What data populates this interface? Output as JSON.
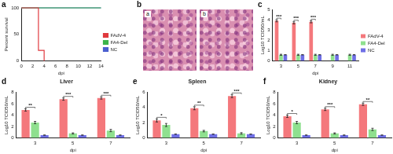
{
  "chart_data": [
    {
      "label": "a",
      "type": "line",
      "x": [
        0,
        3,
        4,
        14
      ],
      "xlabel": "dpi",
      "ylabel": "Percent survival",
      "xlim": [
        0,
        14
      ],
      "xticks": [
        0,
        2,
        4,
        6,
        8,
        10,
        12,
        14
      ],
      "ylim": [
        0,
        100
      ],
      "yticks": [
        0,
        50,
        100
      ],
      "grid": false,
      "legend": "right",
      "line_style": "step",
      "series": [
        {
          "name": "FAdV-4",
          "color": "#e0393e",
          "values": [
            100,
            20,
            0,
            null
          ]
        },
        {
          "name": "FA4-Del",
          "color": "#3cb44b",
          "values": [
            100,
            100,
            100,
            100
          ]
        },
        {
          "name": "NC",
          "color": "#4a5fd0",
          "values": [
            100,
            100,
            100,
            100
          ]
        }
      ]
    },
    {
      "label": "c",
      "type": "bar",
      "categories": [
        "3",
        "5",
        "7",
        "9",
        "11"
      ],
      "xlabel": "dpi",
      "ylabel": "Log10 TCID50/mL",
      "ylim": [
        0,
        5
      ],
      "yticks": [
        0,
        1,
        2,
        3,
        4,
        5
      ],
      "grid": false,
      "legend": "right",
      "annotations": [
        "***",
        "***",
        "***",
        null,
        null
      ],
      "series": [
        {
          "name": "FAdV-4",
          "color": "#f4787c",
          "values": [
            3.9,
            3.7,
            3.8,
            null,
            null
          ],
          "errors": [
            0.1,
            0.1,
            0.1,
            null,
            null
          ]
        },
        {
          "name": "FA4-Del",
          "color": "#8fe08f",
          "values": [
            0.6,
            0.6,
            0.6,
            0.6,
            0.6
          ],
          "errors": [
            0.05,
            0.05,
            0.05,
            0.05,
            0.05
          ]
        },
        {
          "name": "NC",
          "color": "#6f6fe6",
          "values": [
            0.6,
            0.6,
            0.6,
            0.6,
            0.6
          ],
          "errors": [
            0,
            0,
            0,
            0,
            0
          ]
        }
      ]
    },
    {
      "label": "d",
      "type": "bar",
      "title": "Liver",
      "categories": [
        "3",
        "5",
        "7"
      ],
      "xlabel": "dpi",
      "ylabel": "Log10 TCID50/mL",
      "ylim": [
        0,
        8
      ],
      "yticks": [
        0,
        2,
        4,
        6,
        8
      ],
      "grid": false,
      "annotations": [
        "**",
        "***",
        "***"
      ],
      "series": [
        {
          "name": "FAdV-4",
          "color": "#f4787c",
          "values": [
            4.9,
            6.8,
            7.0
          ],
          "errors": [
            0.2,
            0.2,
            0.2
          ]
        },
        {
          "name": "FA4-Del",
          "color": "#8fe08f",
          "values": [
            2.7,
            0.8,
            1.3
          ],
          "errors": [
            0.2,
            0.1,
            0.2
          ]
        },
        {
          "name": "NC",
          "color": "#6f6fe6",
          "values": [
            0.5,
            0.5,
            0.5
          ],
          "errors": [
            0,
            0,
            0
          ]
        }
      ]
    },
    {
      "label": "e",
      "type": "bar",
      "title": "Spleen",
      "categories": [
        "3",
        "5",
        "7"
      ],
      "xlabel": "dpi",
      "ylabel": "Log10 TCID50/mL",
      "ylim": [
        0,
        6
      ],
      "yticks": [
        0,
        2,
        4,
        6
      ],
      "grid": false,
      "annotations": [
        "*",
        "**",
        "***"
      ],
      "series": [
        {
          "name": "FAdV-4",
          "color": "#f4787c",
          "values": [
            2.3,
            3.9,
            5.5
          ],
          "errors": [
            0.2,
            0.2,
            0.2
          ]
        },
        {
          "name": "FA4-Del",
          "color": "#8fe08f",
          "values": [
            1.7,
            0.9,
            0.6
          ],
          "errors": [
            0.2,
            0.1,
            0.1
          ]
        },
        {
          "name": "NC",
          "color": "#6f6fe6",
          "values": [
            0.5,
            0.5,
            0.5
          ],
          "errors": [
            0,
            0,
            0
          ]
        }
      ]
    },
    {
      "label": "f",
      "type": "bar",
      "title": "Kidney",
      "categories": [
        "3",
        "5",
        "7"
      ],
      "xlabel": "dpi",
      "ylabel": "Log10 TCID50/mL",
      "ylim": [
        0,
        8
      ],
      "yticks": [
        0,
        2,
        4,
        6,
        8
      ],
      "grid": false,
      "annotations": [
        "*",
        "***",
        "**"
      ],
      "series": [
        {
          "name": "FAdV-4",
          "color": "#f4787c",
          "values": [
            3.8,
            5.0,
            5.9
          ],
          "errors": [
            0.2,
            0.2,
            0.2
          ]
        },
        {
          "name": "FA4-Del",
          "color": "#8fe08f",
          "values": [
            2.7,
            0.8,
            1.5
          ],
          "errors": [
            0.2,
            0.1,
            0.2
          ]
        },
        {
          "name": "NC",
          "color": "#6f6fe6",
          "values": [
            0.5,
            0.5,
            0.5
          ],
          "errors": [
            0,
            0,
            0
          ]
        }
      ]
    }
  ],
  "image_panel": {
    "label": "b",
    "insets": [
      "a",
      "b"
    ]
  }
}
